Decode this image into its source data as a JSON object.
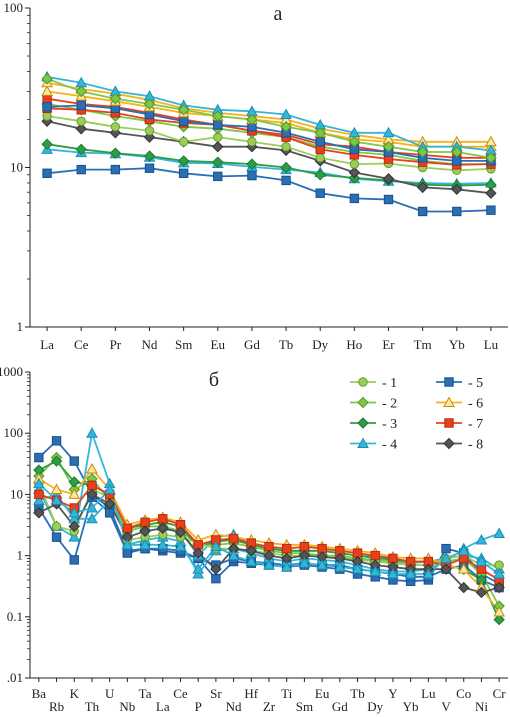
{
  "chart_data": [
    {
      "type": "line",
      "panel_label": "а",
      "y_scale": "log",
      "ylim": [
        1,
        100
      ],
      "y_ticks": [
        "1",
        "10",
        "100"
      ],
      "grid": false,
      "categories": [
        "La",
        "Ce",
        "Pr",
        "Nd",
        "Sm",
        "Eu",
        "Gd",
        "Tb",
        "Dy",
        "Ho",
        "Er",
        "Tm",
        "Yb",
        "Lu"
      ],
      "series": [
        {
          "group": 5,
          "values": [
            9.2,
            9.7,
            9.7,
            9.9,
            9.2,
            8.8,
            8.9,
            8.3,
            6.9,
            6.4,
            6.3,
            5.3,
            5.3,
            5.4
          ]
        },
        {
          "group": 4,
          "values": [
            13,
            12.4,
            12.2,
            11.6,
            10.7,
            10.6,
            10.1,
            9.7,
            9.3,
            8.5,
            8.2,
            8.0,
            7.9,
            8.0
          ]
        },
        {
          "group": 3,
          "values": [
            14,
            13,
            12.3,
            11.8,
            11,
            10.8,
            10.5,
            10.0,
            9.0,
            8.6,
            8.3,
            7.8,
            7.7,
            7.8
          ]
        },
        {
          "group": 8,
          "values": [
            19.5,
            17.5,
            16.5,
            15.5,
            14.5,
            13.5,
            13.5,
            12.8,
            11.0,
            9.3,
            8.5,
            7.5,
            7.3,
            6.9
          ]
        },
        {
          "group": 1,
          "values": [
            21,
            19.5,
            18,
            17,
            14.5,
            15.5,
            14.5,
            13.5,
            11.5,
            10.5,
            10.6,
            10.0,
            9.6,
            9.8
          ]
        },
        {
          "group": 2,
          "values": [
            25,
            23,
            21,
            19.5,
            18,
            17.5,
            16.5,
            15.5,
            13.5,
            12.5,
            12,
            11,
            10.5,
            10.5
          ]
        },
        {
          "group": 7,
          "values": [
            23.5,
            23,
            22,
            20,
            19,
            18.5,
            17,
            16,
            14,
            13.5,
            12.5,
            12,
            11.5,
            11.5
          ]
        },
        {
          "group": 7,
          "values": [
            27,
            25,
            24,
            22,
            20,
            18.5,
            17,
            15.5,
            13,
            12,
            11.3,
            10.8,
            10.4,
            10.5
          ]
        },
        {
          "group": 5,
          "values": [
            24,
            24.5,
            23.5,
            21.5,
            19.5,
            18.5,
            18,
            16.5,
            14.5,
            13,
            12.5,
            11.5,
            11,
            11
          ]
        },
        {
          "group": 6,
          "values": [
            30,
            28,
            26,
            24,
            22,
            21,
            20,
            19,
            16.5,
            15,
            14.5,
            13.5,
            13.5,
            13.5
          ]
        },
        {
          "group": 6,
          "values": [
            34,
            31,
            29,
            26.5,
            23.5,
            22,
            21,
            20,
            17.5,
            16,
            15,
            14.5,
            14.5,
            14.5
          ]
        },
        {
          "group": 4,
          "values": [
            37,
            34,
            30,
            28,
            24.5,
            23,
            22.5,
            21.5,
            18.5,
            16.5,
            16.5,
            13.5,
            13.5,
            12.8
          ]
        },
        {
          "group": 2,
          "values": [
            36,
            30,
            27,
            25,
            23,
            21,
            20,
            18,
            16.5,
            14.5,
            13.5,
            12.5,
            12.5,
            11.5
          ]
        }
      ]
    },
    {
      "type": "line",
      "panel_label": "б",
      "y_scale": "log",
      "ylim": [
        0.01,
        1000
      ],
      "y_ticks": [
        ".01",
        "0.1",
        "1",
        "10",
        "100",
        "1000"
      ],
      "grid": false,
      "legend_position": "top-right",
      "legend": [
        {
          "group": 1,
          "label": "- 1",
          "color": "#9acd5a",
          "edge": "#6a9a2a",
          "marker": "circle"
        },
        {
          "group": 2,
          "label": "- 2",
          "color": "#7cc94a",
          "edge": "#4f9a22",
          "marker": "diamond"
        },
        {
          "group": 3,
          "label": "- 3",
          "color": "#2e9e45",
          "edge": "#1d7a30",
          "marker": "diamond"
        },
        {
          "group": 4,
          "label": "- 4",
          "color": "#35b6d8",
          "edge": "#1b8fb3",
          "marker": "triangle"
        },
        {
          "group": 5,
          "label": "- 5",
          "color": "#2a6fb5",
          "edge": "#1a4f8a",
          "marker": "square"
        },
        {
          "group": 6,
          "label": "- 6",
          "color": "#f5b21a",
          "edge": "#c98a00",
          "marker": "triangle-open"
        },
        {
          "group": 7,
          "label": "- 7",
          "color": "#e8401c",
          "edge": "#b82c0e",
          "marker": "square"
        },
        {
          "group": 8,
          "label": "- 8",
          "color": "#555555",
          "edge": "#333333",
          "marker": "diamond"
        }
      ],
      "categories": [
        "Ba",
        "Rb",
        "K",
        "Th",
        "U",
        "Nb",
        "Ta",
        "La",
        "Ce",
        "P",
        "Sr",
        "Nd",
        "Hf",
        "Zr",
        "Ti",
        "Sm",
        "Eu",
        "Gd",
        "Tb",
        "Dy",
        "Y",
        "Yb",
        "Lu",
        "V",
        "Co",
        "Ni",
        "Cr"
      ],
      "series": [
        {
          "group": 5,
          "values": [
            40,
            75,
            35,
            10,
            6,
            1.2,
            1.3,
            1.2,
            1.1,
            0.9,
            0.42,
            0.8,
            0.75,
            0.7,
            0.65,
            0.7,
            0.65,
            0.6,
            0.5,
            0.45,
            0.4,
            0.38,
            0.4,
            1.3,
            1.1,
            0.5,
            0.35
          ]
        },
        {
          "group": 5,
          "values": [
            6,
            2,
            0.85,
            9,
            5,
            1.1,
            1.3,
            1.3,
            1.2,
            0.9,
            0.7,
            0.9,
            0.8,
            0.75,
            0.7,
            0.75,
            0.7,
            0.7,
            0.6,
            0.55,
            0.5,
            0.45,
            0.45,
            0.6,
            0.7,
            0.4,
            0.3
          ]
        },
        {
          "group": 4,
          "values": [
            12,
            3,
            2,
            100,
            15,
            1.5,
            1.8,
            2.0,
            1.7,
            0.5,
            1.2,
            1.3,
            1.1,
            0.9,
            0.8,
            0.9,
            0.85,
            0.8,
            0.7,
            0.6,
            0.55,
            0.55,
            0.6,
            0.8,
            1.3,
            1.8,
            2.3
          ]
        },
        {
          "group": 4,
          "values": [
            8,
            10,
            4,
            4,
            8,
            2.5,
            3,
            3,
            2.5,
            1.0,
            2.0,
            2.2,
            1.5,
            1.3,
            1.2,
            1.2,
            1.2,
            1.1,
            1.0,
            0.9,
            0.8,
            0.75,
            0.8,
            0.9,
            1.0,
            0.9,
            0.6
          ]
        },
        {
          "group": 2,
          "values": [
            20,
            40,
            12,
            18,
            8,
            2.5,
            3,
            3,
            2.5,
            1.5,
            1.5,
            1.6,
            1.4,
            1.2,
            1.1,
            1.1,
            1.0,
            1.0,
            0.9,
            0.85,
            0.8,
            0.7,
            0.7,
            0.8,
            0.9,
            0.5,
            0.15
          ]
        },
        {
          "group": 3,
          "values": [
            25,
            35,
            16,
            14,
            10,
            2.8,
            3.2,
            3.5,
            3,
            1.4,
            1.7,
            1.8,
            1.5,
            1.3,
            1.2,
            1.2,
            1.2,
            1.1,
            1.0,
            0.95,
            0.85,
            0.8,
            0.8,
            0.7,
            0.6,
            0.4,
            0.09
          ]
        },
        {
          "group": 1,
          "values": [
            15,
            3,
            2.5,
            12,
            9,
            1.8,
            2.0,
            2.2,
            2.0,
            1.6,
            1.3,
            1.3,
            1.2,
            1.1,
            1.0,
            1.0,
            1.0,
            0.95,
            0.85,
            0.8,
            0.75,
            0.7,
            0.7,
            0.9,
            1.0,
            0.7,
            0.7
          ]
        },
        {
          "group": 6,
          "values": [
            18,
            12,
            10,
            26,
            12,
            3.2,
            3.8,
            4.2,
            3.5,
            1.8,
            2.2,
            2.0,
            1.8,
            1.6,
            1.5,
            1.5,
            1.4,
            1.3,
            1.2,
            1.1,
            0.95,
            0.9,
            0.9,
            0.7,
            0.6,
            0.3,
            0.12
          ]
        },
        {
          "group": 7,
          "values": [
            10,
            8,
            6,
            14,
            10,
            2.8,
            3.5,
            4,
            3.2,
            1.5,
            1.8,
            1.9,
            1.6,
            1.4,
            1.3,
            1.4,
            1.3,
            1.2,
            1.1,
            1.0,
            0.9,
            0.8,
            0.8,
            0.7,
            0.9,
            0.6,
            0.4
          ]
        },
        {
          "group": 8,
          "values": [
            5,
            7,
            3,
            10,
            7,
            2.0,
            2.5,
            2.8,
            2.4,
            1.1,
            0.6,
            1.3,
            1.2,
            1.0,
            0.9,
            1.0,
            0.95,
            0.9,
            0.8,
            0.7,
            0.65,
            0.6,
            0.6,
            0.6,
            0.3,
            0.25,
            0.3
          ]
        },
        {
          "group": 4,
          "values": [
            15,
            8,
            5,
            6,
            12,
            1.5,
            1.5,
            1.5,
            1.4,
            0.6,
            1.4,
            1.0,
            0.8,
            0.7,
            0.65,
            0.75,
            0.7,
            0.65,
            0.6,
            0.55,
            0.5,
            0.5,
            0.5,
            0.9,
            1.2,
            0.8,
            0.5
          ]
        }
      ]
    }
  ]
}
